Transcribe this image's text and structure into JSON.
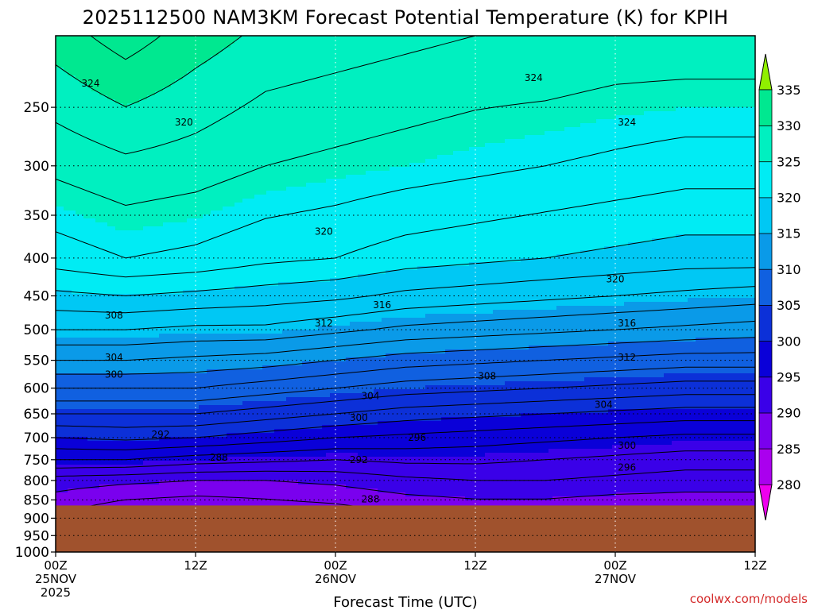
{
  "chart_data": {
    "type": "heatmap",
    "title": "2025112500 NAM3KM Forecast Potential Temperature (K) for KPIH",
    "xlabel": "Forecast Time (UTC)",
    "ylabel": "",
    "credit": "coolwx.com/models",
    "x_range_hours": [
      0,
      60
    ],
    "y_range_hpa": [
      200,
      1000
    ],
    "y_scale": "log-pressure",
    "y_ticks": [
      "250",
      "300",
      "350",
      "400",
      "450",
      "500",
      "550",
      "600",
      "650",
      "700",
      "750",
      "800",
      "850",
      "900",
      "950",
      "1000"
    ],
    "x_ticks": [
      {
        "hour": 0,
        "line1": "00Z",
        "line2": "25NOV",
        "line3": "2025"
      },
      {
        "hour": 12,
        "line1": "12Z",
        "line2": "",
        "line3": ""
      },
      {
        "hour": 24,
        "line1": "00Z",
        "line2": "26NOV",
        "line3": ""
      },
      {
        "hour": 36,
        "line1": "12Z",
        "line2": "",
        "line3": ""
      },
      {
        "hour": 48,
        "line1": "00Z",
        "line2": "27NOV",
        "line3": ""
      },
      {
        "hour": 60,
        "line1": "12Z",
        "line2": "",
        "line3": ""
      }
    ],
    "surface_pressure_hpa": 865,
    "colorbar": {
      "levels": [
        "280",
        "285",
        "290",
        "295",
        "300",
        "305",
        "310",
        "315",
        "320",
        "325",
        "330",
        "335"
      ],
      "colors": [
        "#ee00ee",
        "#aa00ee",
        "#7a00ee",
        "#3a00e8",
        "#0a00d8",
        "#0c30d8",
        "#1060e0",
        "#0a9ae8",
        "#00c8f4",
        "#00ecf4",
        "#00f0c0",
        "#00e890",
        "#30e840",
        "#90f000"
      ]
    },
    "profiles": [
      {
        "hour": 0,
        "theta": [
          289.0,
          291.0,
          296.0,
          300.0,
          304.0,
          308.0,
          312.0,
          316.0,
          319.5,
          323.0,
          326.5,
          331.0
        ]
      },
      {
        "hour": 6,
        "theta": [
          287.5,
          290.5,
          296.0,
          300.5,
          304.0,
          308.0,
          312.0,
          316.0,
          320.0,
          324.0,
          327.5,
          333.0
        ]
      },
      {
        "hour": 12,
        "theta": [
          287.0,
          290.0,
          295.0,
          300.0,
          304.0,
          308.0,
          311.5,
          315.5,
          319.5,
          323.5,
          327.0,
          331.0
        ]
      },
      {
        "hour": 18,
        "theta": [
          287.5,
          290.0,
          294.5,
          299.0,
          303.0,
          307.0,
          311.0,
          315.5,
          319.0,
          322.5,
          326.0,
          329.5
        ]
      },
      {
        "hour": 24,
        "theta": [
          288.0,
          290.5,
          294.0,
          298.0,
          302.0,
          306.0,
          310.0,
          314.5,
          318.5,
          322.0,
          325.5,
          329.0
        ]
      },
      {
        "hour": 30,
        "theta": [
          289.0,
          291.5,
          294.5,
          297.5,
          301.0,
          305.0,
          309.0,
          313.5,
          317.5,
          321.0,
          325.0,
          328.5
        ]
      },
      {
        "hour": 36,
        "theta": [
          289.5,
          292.0,
          294.5,
          297.0,
          300.5,
          304.5,
          308.5,
          313.0,
          317.0,
          320.5,
          324.5,
          328.0
        ]
      },
      {
        "hour": 42,
        "theta": [
          289.5,
          292.0,
          294.0,
          296.5,
          300.0,
          304.0,
          308.0,
          312.5,
          316.5,
          320.0,
          324.0,
          328.0
        ]
      },
      {
        "hour": 48,
        "theta": [
          289.0,
          291.5,
          293.5,
          296.0,
          299.5,
          303.5,
          307.5,
          312.0,
          316.0,
          319.5,
          323.5,
          327.5
        ]
      },
      {
        "hour": 54,
        "theta": [
          289.0,
          291.0,
          293.0,
          295.5,
          299.0,
          303.0,
          307.0,
          311.5,
          315.5,
          319.0,
          323.0,
          327.5
        ]
      },
      {
        "hour": 60,
        "theta": [
          289.0,
          291.0,
          293.0,
          295.5,
          299.0,
          303.0,
          307.0,
          311.0,
          315.0,
          319.0,
          323.0,
          327.5
        ]
      }
    ],
    "profile_pressures_hpa": [
      860,
      800,
      750,
      700,
      650,
      600,
      550,
      500,
      450,
      400,
      300,
      200
    ],
    "contour_labels": [
      {
        "text": "324",
        "hour": 3.0,
        "p": 232
      },
      {
        "text": "320",
        "hour": 11.0,
        "p": 262
      },
      {
        "text": "324",
        "hour": 41.0,
        "p": 228
      },
      {
        "text": "324",
        "hour": 49.0,
        "p": 262
      },
      {
        "text": "320",
        "hour": 23.0,
        "p": 368
      },
      {
        "text": "320",
        "hour": 48.0,
        "p": 427
      },
      {
        "text": "316",
        "hour": 28.0,
        "p": 463
      },
      {
        "text": "316",
        "hour": 49.0,
        "p": 490
      },
      {
        "text": "312",
        "hour": 23.0,
        "p": 490
      },
      {
        "text": "312",
        "hour": 49.0,
        "p": 545
      },
      {
        "text": "308",
        "hour": 5.0,
        "p": 478
      },
      {
        "text": "308",
        "hour": 37.0,
        "p": 578
      },
      {
        "text": "304",
        "hour": 5.0,
        "p": 545
      },
      {
        "text": "304",
        "hour": 27.0,
        "p": 615
      },
      {
        "text": "304",
        "hour": 47.0,
        "p": 632
      },
      {
        "text": "300",
        "hour": 5.0,
        "p": 575
      },
      {
        "text": "300",
        "hour": 26.0,
        "p": 658
      },
      {
        "text": "300",
        "hour": 49.0,
        "p": 718
      },
      {
        "text": "296",
        "hour": 31.0,
        "p": 700
      },
      {
        "text": "296",
        "hour": 49.0,
        "p": 768
      },
      {
        "text": "292",
        "hour": 9.0,
        "p": 693
      },
      {
        "text": "292",
        "hour": 26.0,
        "p": 750
      },
      {
        "text": "288",
        "hour": 14.0,
        "p": 745
      },
      {
        "text": "288",
        "hour": 27.0,
        "p": 848
      }
    ],
    "grid": true
  }
}
